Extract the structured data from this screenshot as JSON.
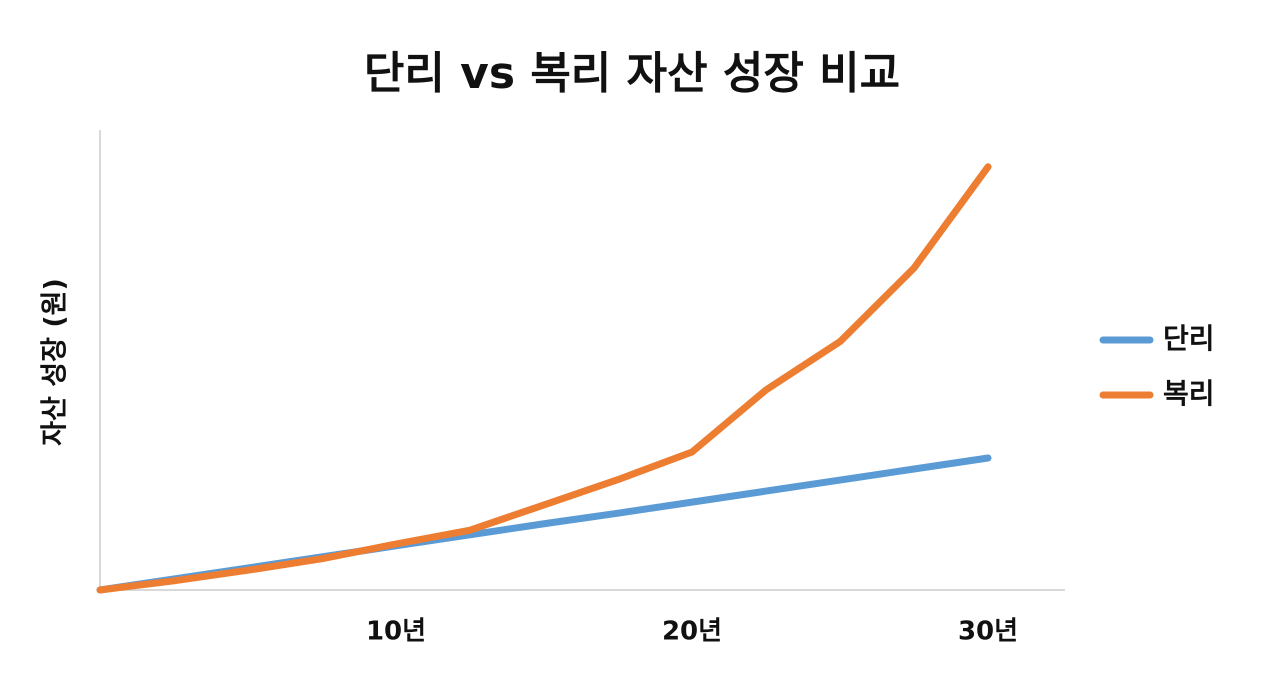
{
  "chart_data": {
    "type": "line",
    "title": "단리 vs 복리 자산 성장 비교",
    "y_label": "자산 성장 (원)",
    "x": [
      0,
      2.5,
      5,
      7.5,
      10,
      12.5,
      15,
      17.5,
      20,
      22.5,
      25,
      27.5,
      30
    ],
    "series": [
      {
        "name": "단리",
        "color": "#5b9bd5",
        "values": [
          0,
          2.4,
          4.8,
          7.2,
          9.6,
          12,
          14.4,
          16.7,
          19.1,
          21.5,
          23.9,
          26.3,
          28.7
        ]
      },
      {
        "name": "복리",
        "color": "#ed7d31",
        "values": [
          0,
          2,
          4.3,
          6.8,
          10,
          13,
          18.5,
          24,
          30,
          43.5,
          54,
          70,
          92
        ]
      }
    ],
    "xlim": [
      0,
      32.6
    ],
    "xticks": [
      {
        "value": 10,
        "label": "10년"
      },
      {
        "value": 20,
        "label": "20년"
      },
      {
        "value": 30,
        "label": "30년"
      }
    ],
    "ylim": [
      0,
      100
    ],
    "grid": false,
    "legend": "right"
  }
}
